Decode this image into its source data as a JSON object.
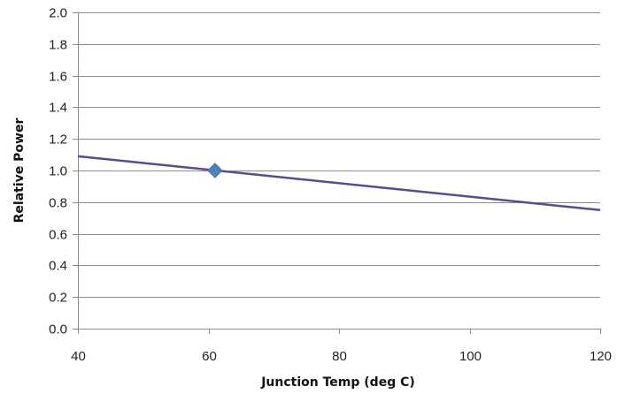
{
  "chart_data": {
    "type": "line",
    "title": "",
    "xlabel": "Junction Temp (deg C)",
    "ylabel": "Relative Power",
    "xlim": [
      40,
      120
    ],
    "ylim": [
      0.0,
      2.0
    ],
    "x_ticks": [
      "40",
      "60",
      "80",
      "100",
      "120"
    ],
    "y_ticks": [
      "0.0",
      "0.2",
      "0.4",
      "0.6",
      "0.8",
      "1.0",
      "1.2",
      "1.4",
      "1.6",
      "1.8",
      "2.0"
    ],
    "grid": "horizontal",
    "legend": "none",
    "series": [
      {
        "type": "line",
        "color": "#5b4a8f",
        "points": [
          [
            40,
            1.09
          ],
          [
            120,
            0.75
          ]
        ]
      },
      {
        "type": "scatter",
        "marker": "diamond",
        "color": "#4f81bd",
        "points": [
          [
            61,
            1.0
          ]
        ]
      }
    ]
  }
}
